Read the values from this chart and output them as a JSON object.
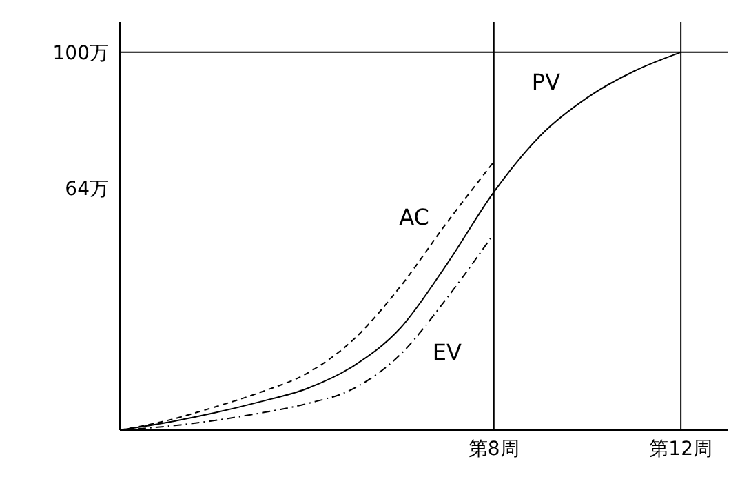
{
  "chart_data": {
    "type": "line",
    "categories": [
      null,
      null,
      null,
      null,
      null,
      null,
      null,
      null,
      "第8周",
      null,
      null,
      null,
      "第12周"
    ],
    "ylim": [
      0,
      108
    ],
    "yticks": [
      {
        "value": 64,
        "label": "64万"
      },
      {
        "value": 100,
        "label": "100万"
      }
    ],
    "marker": "none",
    "ref_lines": [
      {
        "axis": "y",
        "value": 100,
        "color": "#000000"
      },
      {
        "axis": "x",
        "value": "第8周",
        "color": "#000000"
      },
      {
        "axis": "x",
        "value": "第12周",
        "color": "#000000"
      }
    ],
    "series": [
      {
        "name": "PV",
        "color": "#000000",
        "line_style": "solid",
        "values": [
          0,
          2,
          4.5,
          7.5,
          11,
          17,
          27,
          44,
          63,
          78,
          88,
          95,
          100
        ]
      },
      {
        "name": "AC",
        "color": "#000000",
        "line_style": "dashed",
        "values": [
          0,
          2.5,
          6,
          10,
          15,
          24,
          38,
          55,
          71,
          null,
          null,
          null,
          null
        ]
      },
      {
        "name": "EV",
        "color": "#000000",
        "line_style": "dashdot",
        "values": [
          0,
          1,
          2.5,
          4.5,
          7,
          11,
          20,
          35,
          52,
          null,
          null,
          null,
          null
        ]
      }
    ]
  }
}
